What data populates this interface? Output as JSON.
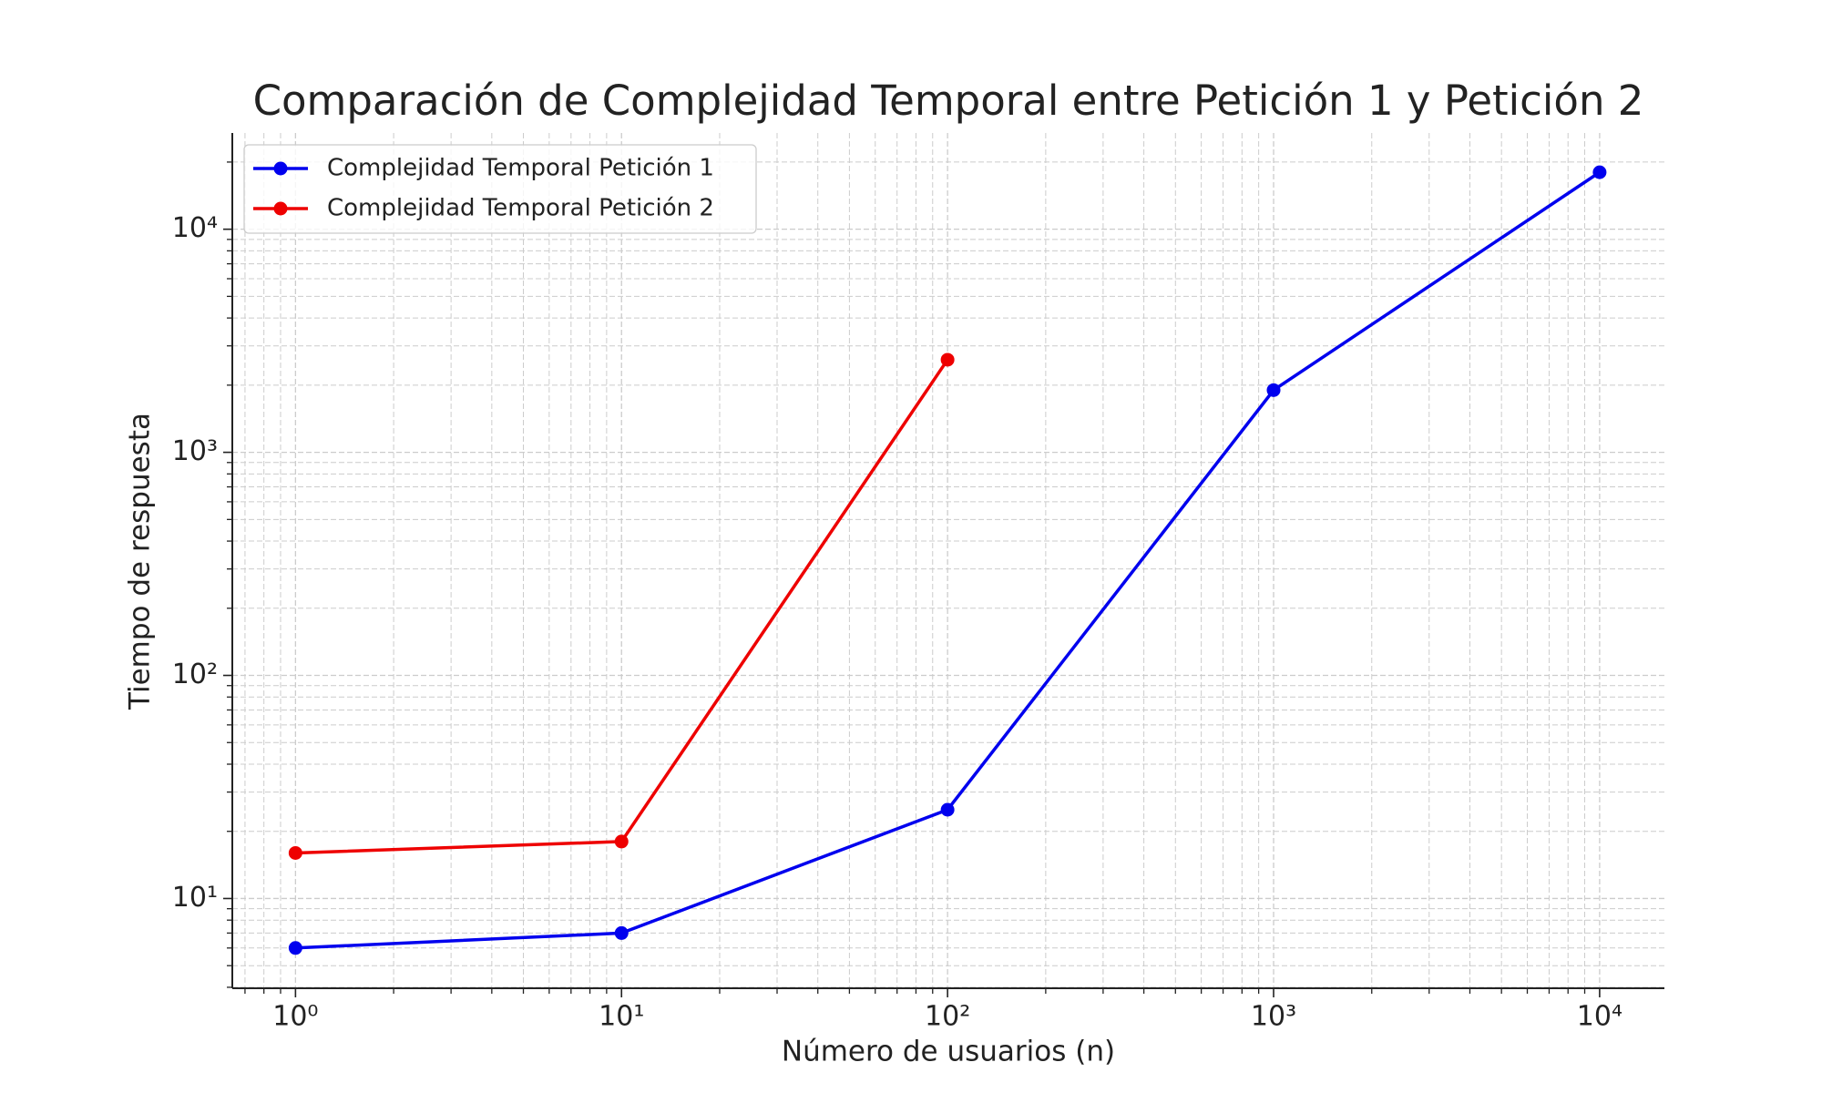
{
  "chart_data": {
    "type": "line",
    "title": "Comparación de Complejidad Temporal entre Petición 1 y Petición 2",
    "x_label": "Número de usuarios (n)",
    "y_label": "Tiempo de respuesta",
    "xscale": "log",
    "yscale": "log",
    "grid": true,
    "minor_grid": true,
    "legend": "upper left",
    "series": [
      {
        "name": "Complejidad Temporal Petición 1",
        "color": "#0000ee",
        "x": [
          1,
          10,
          100,
          1000,
          10000
        ],
        "values": [
          6,
          7,
          25,
          1900,
          18000
        ]
      },
      {
        "name": "Complejidad Temporal Petición 2",
        "color": "#ee0000",
        "x": [
          1,
          10,
          100
        ],
        "values": [
          16,
          18,
          2600
        ]
      }
    ],
    "xlim": [
      0.64,
      15800
    ],
    "ylim": [
      3.96,
      27000
    ],
    "xticks": [
      {
        "value": 1,
        "label": "10⁰"
      },
      {
        "value": 10,
        "label": "10¹"
      },
      {
        "value": 100,
        "label": "10²"
      },
      {
        "value": 1000,
        "label": "10³"
      },
      {
        "value": 10000,
        "label": "10⁴"
      }
    ],
    "yticks": [
      {
        "value": 10,
        "label": "10¹"
      },
      {
        "value": 100,
        "label": "10²"
      },
      {
        "value": 1000,
        "label": "10³"
      },
      {
        "value": 10000,
        "label": "10⁴"
      }
    ]
  }
}
